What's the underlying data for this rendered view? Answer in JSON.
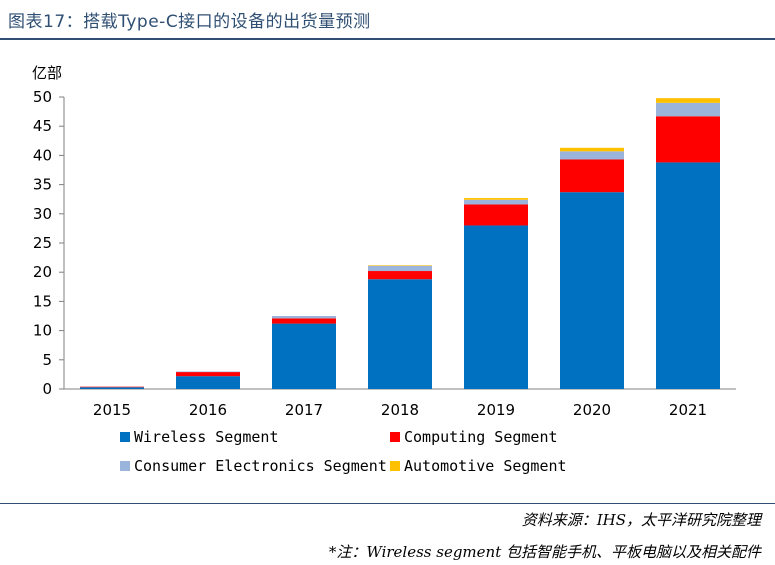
{
  "header": {
    "title": "图表17：搭载Type-C接口的设备的出货量预测"
  },
  "footer": {
    "source": "资料来源：IHS，太平洋研究院整理",
    "note": "*注：Wireless segment 包括智能手机、平板电脑以及相关配件"
  },
  "chart_data": {
    "type": "bar",
    "stacked": true,
    "unit_label": "亿部",
    "categories": [
      "2015",
      "2016",
      "2017",
      "2018",
      "2019",
      "2020",
      "2021"
    ],
    "ylim": [
      0,
      50
    ],
    "yticks": [
      0,
      5,
      10,
      15,
      20,
      25,
      30,
      35,
      40,
      45,
      50
    ],
    "grid": false,
    "legend_position": "bottom",
    "series": [
      {
        "name": "Wireless Segment",
        "color": "#0070c0",
        "values": [
          0.3,
          2.2,
          11.2,
          18.8,
          28.0,
          33.7,
          38.8
        ]
      },
      {
        "name": "Computing Segment",
        "color": "#ff0000",
        "values": [
          0.1,
          0.7,
          0.9,
          1.4,
          3.6,
          5.6,
          7.9
        ]
      },
      {
        "name": "Consumer Electronics Segment",
        "color": "#9bb4dc",
        "values": [
          0.0,
          0.1,
          0.4,
          0.9,
          0.8,
          1.4,
          2.3
        ]
      },
      {
        "name": "Automotive Segment",
        "color": "#ffc000",
        "values": [
          0.0,
          0.0,
          0.0,
          0.1,
          0.3,
          0.6,
          0.8
        ]
      }
    ]
  }
}
